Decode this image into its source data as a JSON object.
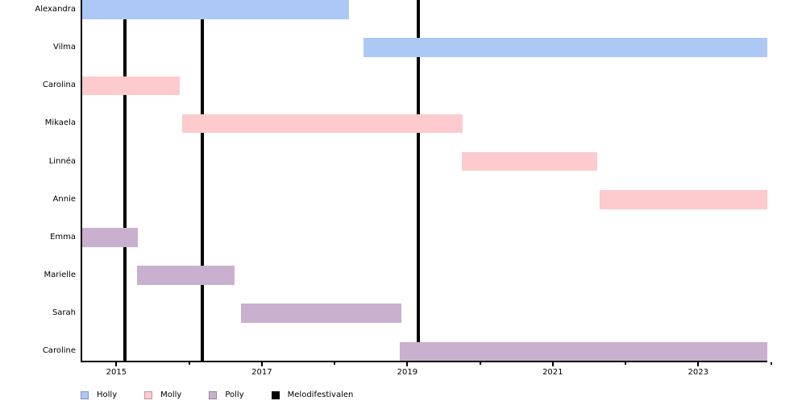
{
  "chart_data": {
    "type": "bar",
    "subtype": "gantt-timeline",
    "title": "",
    "xlabel": "",
    "ylabel": "",
    "grid": false,
    "legend_position": "bottom-left",
    "x_axis": {
      "min": 2014.53,
      "max": 2023.95,
      "ticks": [
        {
          "year": 2015,
          "label": "2015"
        },
        {
          "year": 2016,
          "label": ""
        },
        {
          "year": 2017,
          "label": "2017"
        },
        {
          "year": 2018,
          "label": ""
        },
        {
          "year": 2019,
          "label": "2019"
        },
        {
          "year": 2020,
          "label": ""
        },
        {
          "year": 2021,
          "label": "2021"
        },
        {
          "year": 2022,
          "label": ""
        },
        {
          "year": 2023,
          "label": "2023"
        },
        {
          "year": 2024,
          "label": ""
        }
      ]
    },
    "series": [
      {
        "name": "Holly",
        "color": "#aec8f5"
      },
      {
        "name": "Molly",
        "color": "#fdcacd"
      },
      {
        "name": "Polly",
        "color": "#c8b0ce"
      }
    ],
    "rows": [
      {
        "name": "Alexandra",
        "series": "Holly",
        "start": 2014.53,
        "end": 2018.2
      },
      {
        "name": "Vilma",
        "series": "Holly",
        "start": 2018.4,
        "end": 2023.95
      },
      {
        "name": "Carolina",
        "series": "Molly",
        "start": 2014.53,
        "end": 2015.87
      },
      {
        "name": "Mikaela",
        "series": "Molly",
        "start": 2015.9,
        "end": 2019.76
      },
      {
        "name": "Linnéa",
        "series": "Molly",
        "start": 2019.75,
        "end": 2021.61
      },
      {
        "name": "Annie",
        "series": "Molly",
        "start": 2021.65,
        "end": 2023.95
      },
      {
        "name": "Emma",
        "series": "Polly",
        "start": 2014.53,
        "end": 2015.29
      },
      {
        "name": "Marielle",
        "series": "Polly",
        "start": 2015.28,
        "end": 2016.63
      },
      {
        "name": "Sarah",
        "series": "Polly",
        "start": 2016.71,
        "end": 2018.92
      },
      {
        "name": "Caroline",
        "series": "Polly",
        "start": 2018.9,
        "end": 2023.95
      }
    ],
    "events": {
      "name": "Melodifestivalen",
      "color": "#000000",
      "years": [
        2015.12,
        2016.18,
        2019.15
      ]
    },
    "legend": [
      {
        "label": "Holly",
        "color": "#aec8f5"
      },
      {
        "label": "Molly",
        "color": "#fdcacd"
      },
      {
        "label": "Polly",
        "color": "#c8b0ce"
      },
      {
        "label": "Melodifestivalen",
        "color": "#000000"
      }
    ]
  }
}
